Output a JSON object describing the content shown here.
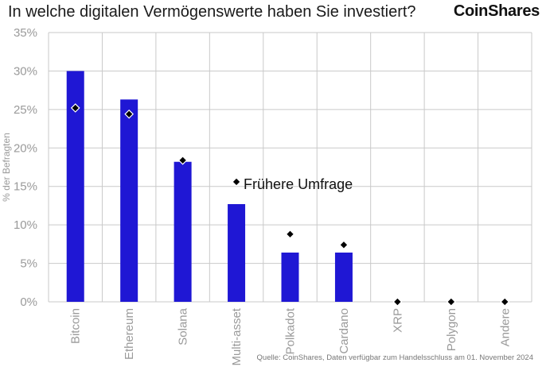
{
  "header": {
    "title": "In welche digitalen Vermögenswerte haben Sie investiert?",
    "logo": "CoinShares"
  },
  "footer": {
    "source": "Quelle: CoinShares, Daten verfügbar zum Handelsschluss am 01. November 2024"
  },
  "colors": {
    "bar": "#1f17d4",
    "marker": "#000000",
    "grid": "#c9c9c9",
    "tick_text": "#9a9a9a"
  },
  "chart_data": {
    "type": "bar",
    "categories": [
      "Bitcoin",
      "Ethereum",
      "Solana",
      "Multi-asset",
      "Polkadot",
      "Cardano",
      "XRP",
      "Polygon",
      "Andere"
    ],
    "series": [
      {
        "values": [
          30.0,
          26.3,
          18.2,
          12.7,
          6.4,
          6.4,
          0,
          0,
          0
        ]
      },
      {
        "name": "Frühere Umfrage",
        "values": [
          25.2,
          24.4,
          18.4,
          null,
          8.8,
          7.4,
          0,
          0,
          0
        ]
      }
    ],
    "ylabel": "% der Befragten",
    "ylim": [
      0,
      35
    ],
    "yticks": [
      "0%",
      "5%",
      "10%",
      "15%",
      "20%",
      "25%",
      "30%",
      "35%"
    ],
    "annotation": {
      "text": "Frühere Umfrage",
      "marker_value": 15.6,
      "near_category": "Multi-asset"
    },
    "grid": true
  }
}
